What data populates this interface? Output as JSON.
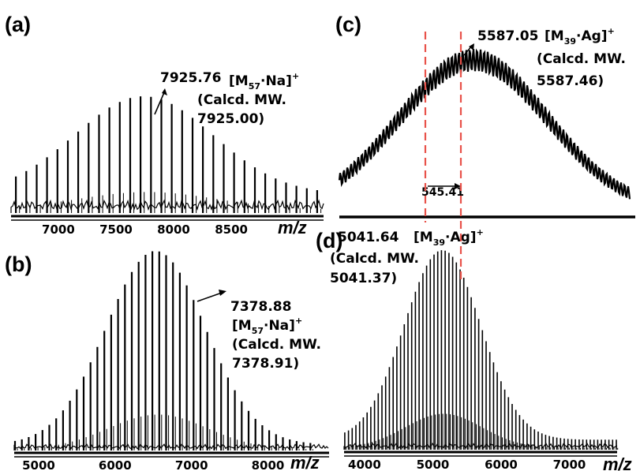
{
  "chart_data": [
    {
      "id": "a",
      "type": "line",
      "panel_label": "(a)",
      "xlabel": "m/z",
      "xlim": [
        6590,
        9300
      ],
      "xticks": [
        "7000",
        "7500",
        "8000",
        "8500"
      ],
      "xtick_values": [
        7000,
        7500,
        8000,
        8500
      ],
      "peaks": {
        "start": 6632,
        "spacing": 90.1,
        "count": 30,
        "center": 7740,
        "width": 600,
        "max": 1.0,
        "baseline": 0.16
      },
      "annotation": {
        "value": "7925.76",
        "species_main": "[M",
        "species_sub": "57",
        "species_rest": "·Na]",
        "charge": "+",
        "calc1": "(Calcd. MW.",
        "calc2": "7925.00)"
      }
    },
    {
      "id": "b",
      "type": "line",
      "panel_label": "(b)",
      "xlabel": "m/z",
      "xlim": [
        4680,
        8800
      ],
      "xticks": [
        "5000",
        "6000",
        "7000",
        "8000"
      ],
      "xtick_values": [
        5000,
        6000,
        7000,
        8000
      ],
      "peaks": {
        "start": 4690,
        "spacing": 89.9,
        "count": 44,
        "center": 6530,
        "width": 650,
        "max": 1.0,
        "baseline": 0.03
      },
      "annotation": {
        "value": "7378.88",
        "species_main": "[M",
        "species_sub": "57",
        "species_rest": "·Na]",
        "charge": "+",
        "calc1": "(Calcd. MW.",
        "calc2": "7378.91)"
      }
    },
    {
      "id": "c",
      "type": "line",
      "panel_label": "(c)",
      "envelope": {
        "center": 5700,
        "width": 600,
        "ripple_spacing": 29,
        "ripple_amp": 0.07,
        "xlim": [
          4620,
          6960
        ]
      },
      "annotation": {
        "value": "5587.05",
        "species_main": "[M",
        "species_sub": "39",
        "species_rest": "·Ag]",
        "charge": "+",
        "calc1": "(Calcd. MW.",
        "calc2": "5587.46)"
      },
      "spacing_label": "545.41"
    },
    {
      "id": "d",
      "type": "line",
      "panel_label": "(d)",
      "xlabel": "m/z",
      "xlim": [
        3700,
        7700
      ],
      "xticks": [
        "4000",
        "5000",
        "6000",
        "7000"
      ],
      "xtick_values": [
        4000,
        5000,
        6000,
        7000
      ],
      "peaks": {
        "start": 3710,
        "spacing": 54.5,
        "count": 74,
        "center": 5140,
        "width": 560,
        "max": 1.0,
        "baseline": 0.05
      },
      "annotation": {
        "value": "5041.64",
        "species_main": "[M",
        "species_sub": "39",
        "species_rest": "·Ag]",
        "charge": "+",
        "calc1": "(Calcd. MW.",
        "calc2": "5041.37)"
      }
    }
  ],
  "colors": {
    "trace": "#000000",
    "marker": "#e8524a"
  }
}
